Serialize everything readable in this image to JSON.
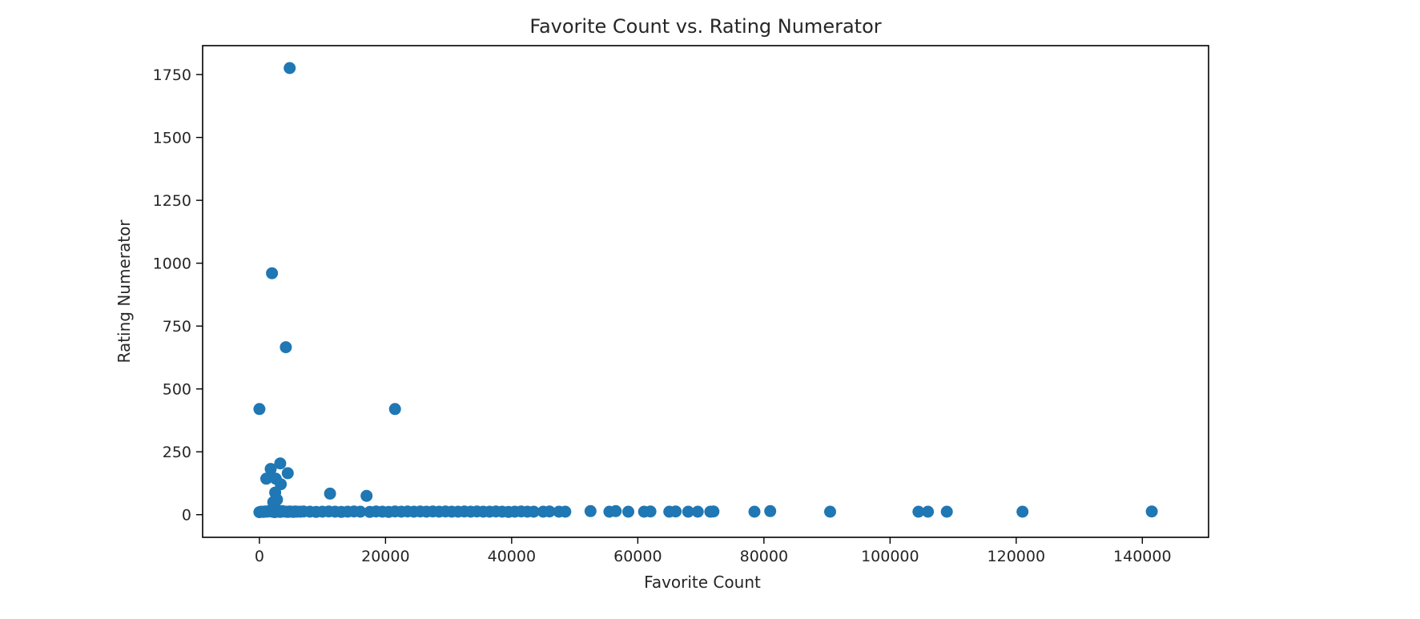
{
  "chart_data": {
    "type": "scatter",
    "title": "Favorite Count vs. Rating Numerator",
    "xlabel": "Favorite Count",
    "ylabel": "Rating Numerator",
    "xlim": [
      -9000,
      150500
    ],
    "ylim": [
      -90,
      1865
    ],
    "xticks": [
      0,
      20000,
      40000,
      60000,
      80000,
      100000,
      120000,
      140000
    ],
    "yticks": [
      0,
      250,
      500,
      750,
      1000,
      1250,
      1500,
      1750
    ],
    "grid": false,
    "legend": "none",
    "marker_color": "#1f77b4",
    "series": [
      {
        "x": [
          4800,
          2000,
          4200,
          0,
          21500,
          3300,
          1800,
          4500,
          1100,
          2600,
          3400,
          11200,
          17000,
          2500,
          2200,
          2800,
          2400,
          0,
          300,
          600,
          900,
          1200,
          1500,
          1800,
          2100,
          2400,
          2700,
          3000,
          3300,
          3600,
          3900,
          4200,
          4500,
          4800,
          5100,
          5400,
          5700,
          6000,
          6500,
          7000,
          8000,
          9000,
          10000,
          11000,
          12000,
          13000,
          14000,
          15000,
          16000,
          17500,
          18500,
          19500,
          20500,
          21500,
          22500,
          23500,
          24500,
          25500,
          26500,
          27500,
          28500,
          29500,
          30500,
          31500,
          32500,
          33500,
          34500,
          35500,
          36500,
          37500,
          38500,
          39500,
          40500,
          41500,
          42500,
          43500,
          45000,
          46000,
          47500,
          48500,
          52500,
          55500,
          56500,
          58500,
          61000,
          62000,
          65000,
          66000,
          68000,
          69500,
          71500,
          72000,
          78500,
          81000,
          90500,
          104500,
          106000,
          109000,
          121000,
          141500
        ],
        "y": [
          1776,
          960,
          666,
          420,
          420,
          204,
          182,
          165,
          143,
          143,
          121,
          84,
          75,
          88,
          50,
          60,
          45,
          10,
          12,
          11,
          13,
          12,
          14,
          13,
          12,
          10,
          13,
          12,
          11,
          14,
          13,
          12,
          11,
          13,
          12,
          11,
          13,
          12,
          12,
          13,
          12,
          11,
          12,
          13,
          12,
          11,
          12,
          13,
          12,
          11,
          13,
          12,
          11,
          13,
          12,
          13,
          12,
          13,
          12,
          13,
          12,
          13,
          12,
          12,
          13,
          12,
          13,
          12,
          12,
          13,
          12,
          11,
          12,
          13,
          12,
          12,
          12,
          13,
          12,
          12,
          14,
          12,
          14,
          12,
          12,
          13,
          12,
          13,
          12,
          12,
          12,
          13,
          12,
          14,
          12,
          12,
          12,
          12,
          12,
          13
        ]
      }
    ]
  }
}
